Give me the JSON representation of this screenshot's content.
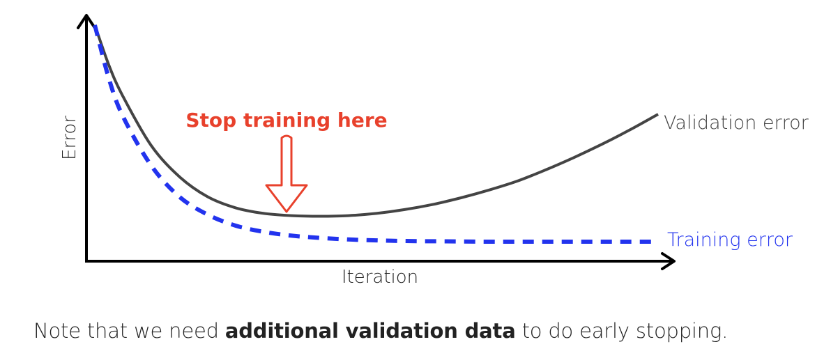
{
  "chart_data": {
    "type": "line",
    "xlabel": "Iteration",
    "ylabel": "Error",
    "grid": false,
    "series": [
      {
        "name": "Validation error",
        "color": "#444444",
        "style": "solid",
        "x": [
          0.0,
          0.5,
          1,
          2,
          3,
          4,
          5,
          6,
          7,
          8,
          9,
          10,
          11,
          12,
          13,
          14,
          15,
          16,
          17,
          18,
          19,
          20
        ],
        "y": [
          10,
          8.2,
          6.8,
          4.6,
          3.2,
          2.3,
          1.8,
          1.55,
          1.45,
          1.42,
          1.45,
          1.55,
          1.72,
          1.95,
          2.25,
          2.6,
          3.0,
          3.5,
          4.05,
          4.65,
          5.3,
          6.0
        ]
      },
      {
        "name": "Training error",
        "color": "#2233ee",
        "style": "dashed",
        "x": [
          0.0,
          0.5,
          1,
          2,
          3,
          4,
          5,
          6,
          7,
          8,
          9,
          10,
          11,
          12,
          13,
          14,
          15,
          16,
          17,
          18,
          19,
          20
        ],
        "y": [
          10,
          7.6,
          5.9,
          3.7,
          2.3,
          1.5,
          1.0,
          0.72,
          0.55,
          0.45,
          0.38,
          0.34,
          0.31,
          0.3,
          0.29,
          0.28,
          0.28,
          0.28,
          0.28,
          0.28,
          0.28,
          0.28
        ]
      }
    ],
    "annotation": {
      "text": "Stop training here",
      "color": "#e8412c",
      "x": 7
    }
  },
  "note": {
    "before": "Note that we need ",
    "bold": "additional validation data",
    "after": " to do early stopping."
  }
}
